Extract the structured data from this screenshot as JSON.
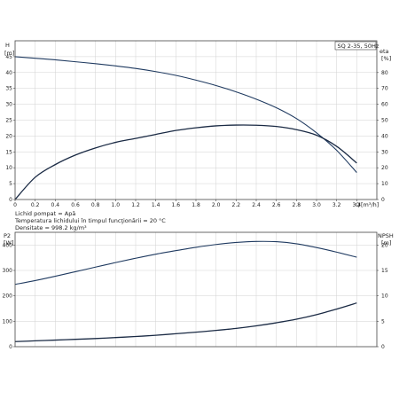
{
  "chart_data": [
    {
      "name": "performance",
      "type": "line",
      "model": "SQ 2-35, 50Hz",
      "xlabel": "Q",
      "xunit": "[m³/h]",
      "xlim": [
        0,
        3.6
      ],
      "xticks": [
        0,
        0.2,
        0.4,
        0.6,
        0.8,
        1.0,
        1.2,
        1.4,
        1.6,
        1.8,
        2.0,
        2.2,
        2.4,
        2.6,
        2.8,
        3.0,
        3.2,
        3.4
      ],
      "xtick_labels": [
        "0",
        "0.2",
        "0.4",
        "0.6",
        "0.8",
        "1.0",
        "1.2",
        "1.4",
        "1.6",
        "1.8",
        "2.0",
        "2.2",
        "2.4",
        "2.6",
        "2.8",
        "3.0",
        "3.2",
        "3.4"
      ],
      "ylabel_left": "H",
      "yunit_left": "[m]",
      "ylim_left": [
        0,
        50
      ],
      "yticks_left": [
        0,
        5,
        10,
        15,
        20,
        25,
        30,
        35,
        40,
        45
      ],
      "ylabel_right": "eta",
      "yunit_right": "[%]",
      "ylim_right": [
        0,
        100
      ],
      "yticks_right": [
        0,
        10,
        20,
        30,
        40,
        50,
        60,
        70,
        80
      ],
      "grid": true,
      "series": [
        {
          "axis": "left",
          "color": "#1f3a60",
          "x": [
            0,
            0.2,
            0.4,
            0.6,
            0.8,
            1.0,
            1.2,
            1.4,
            1.6,
            1.8,
            2.0,
            2.2,
            2.4,
            2.6,
            2.8,
            3.0,
            3.2,
            3.4
          ],
          "y": [
            45.0,
            44.5,
            44.0,
            43.4,
            42.8,
            42.1,
            41.3,
            40.3,
            39.1,
            37.6,
            35.9,
            33.9,
            31.6,
            28.9,
            25.5,
            21.0,
            15.5,
            8.5
          ]
        },
        {
          "axis": "right",
          "color": "#1a2a44",
          "x": [
            0,
            0.2,
            0.4,
            0.6,
            0.8,
            1.0,
            1.2,
            1.4,
            1.6,
            1.8,
            2.0,
            2.2,
            2.4,
            2.6,
            2.8,
            3.0,
            3.2,
            3.4
          ],
          "y": [
            0,
            14,
            22,
            28,
            32.5,
            36,
            38.5,
            41,
            43.5,
            45.2,
            46.4,
            46.9,
            46.8,
            46.0,
            44.0,
            40.5,
            33.5,
            23
          ]
        }
      ],
      "info_lines": [
        "Lichid pompat = Apă",
        "Temperatura lichidului în timpul funcţionării = 20 °C",
        "Densitate = 998.2 kg/m³"
      ]
    },
    {
      "name": "power-npsh",
      "type": "line",
      "xlim": [
        0,
        3.6
      ],
      "xticks": [
        0,
        0.2,
        0.4,
        0.6,
        0.8,
        1.0,
        1.2,
        1.4,
        1.6,
        1.8,
        2.0,
        2.2,
        2.4,
        2.6,
        2.8,
        3.0,
        3.2,
        3.4
      ],
      "ylabel_left": "P2",
      "yunit_left": "[W]",
      "ylim_left": [
        0,
        450
      ],
      "yticks_left": [
        0,
        100,
        200,
        300,
        400
      ],
      "ylabel_right": "NPSH",
      "yunit_right": "[m]",
      "ylim_right": [
        0,
        22.5
      ],
      "yticks_right": [
        0,
        5,
        10,
        15,
        20
      ],
      "grid": true,
      "series": [
        {
          "axis": "left",
          "color": "#1f3a60",
          "x": [
            0,
            0.2,
            0.4,
            0.6,
            0.8,
            1.0,
            1.2,
            1.4,
            1.6,
            1.8,
            2.0,
            2.2,
            2.4,
            2.6,
            2.8,
            3.0,
            3.2,
            3.4
          ],
          "y": [
            245,
            260,
            277,
            295,
            313,
            331,
            348,
            364,
            378,
            391,
            402,
            410,
            414,
            413,
            405,
            390,
            372,
            352
          ]
        },
        {
          "axis": "right",
          "color": "#1a2a44",
          "x": [
            0,
            0.2,
            0.4,
            0.6,
            0.8,
            1.0,
            1.2,
            1.4,
            1.6,
            1.8,
            2.0,
            2.2,
            2.4,
            2.6,
            2.8,
            3.0,
            3.2,
            3.4
          ],
          "y": [
            1.0,
            1.15,
            1.3,
            1.45,
            1.6,
            1.8,
            2.0,
            2.25,
            2.55,
            2.85,
            3.2,
            3.6,
            4.1,
            4.7,
            5.4,
            6.3,
            7.4,
            8.6
          ]
        }
      ]
    }
  ]
}
